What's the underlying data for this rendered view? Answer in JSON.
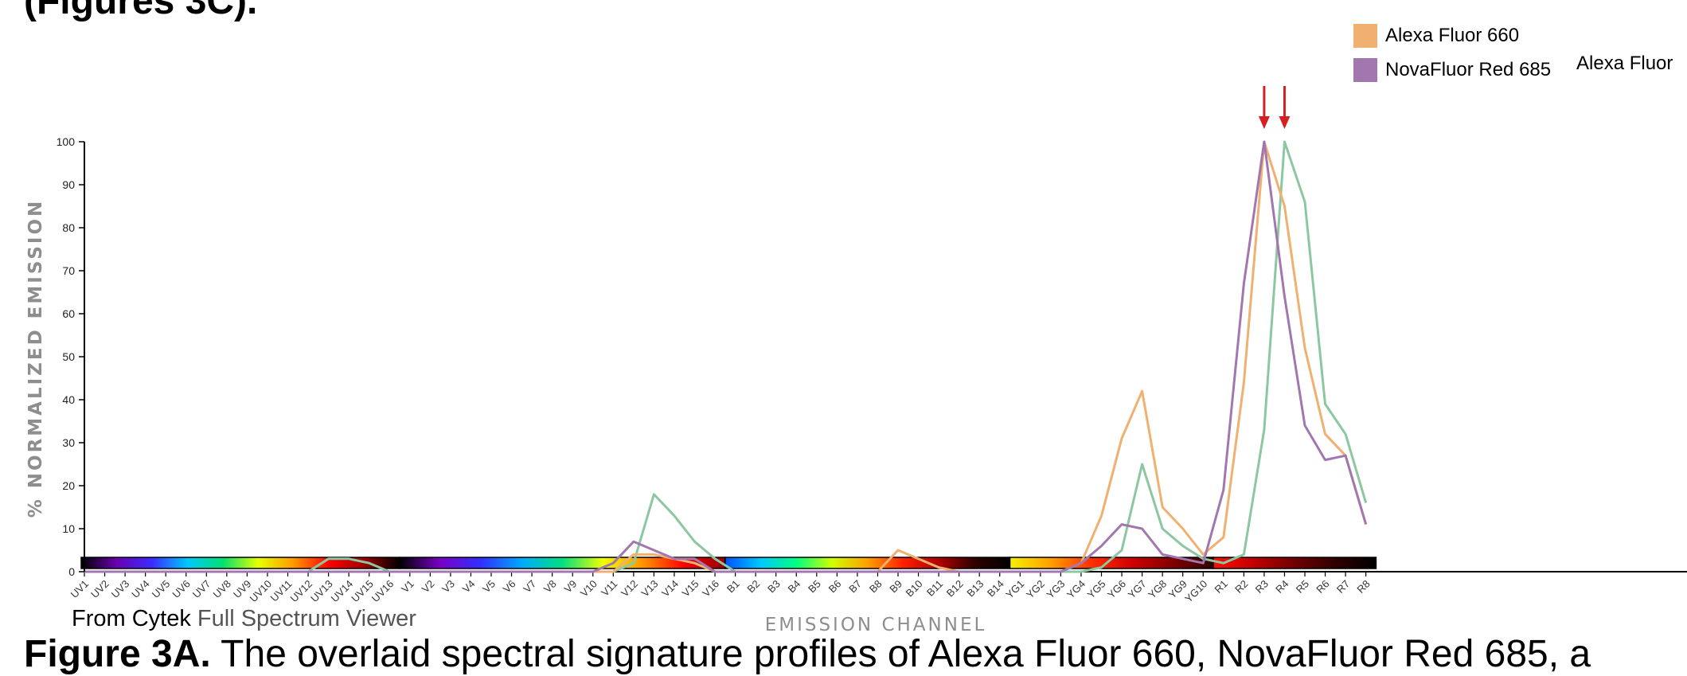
{
  "page": {
    "top_caption": "(Figures 3C).",
    "source_prefix": "From Cytek",
    "source_suffix": "Full Spectrum Viewer",
    "caption_label": "Figure 3A.",
    "caption_text": " The overlaid spectral signature profiles of Alexa Fluor 660, NovaFluor Red 685, a",
    "legend_extra": "Alexa Fluor"
  },
  "colors": {
    "orange": "#f0b070",
    "purple": "#a277b0",
    "green": "#8cc7a1",
    "axis": "#000000",
    "axis_label": "#8e8e8e",
    "arrow": "#d42020"
  },
  "chart_data": {
    "type": "line",
    "xlabel": "EMISSION CHANNEL",
    "ylabel": "% NORMALIZED EMISSION",
    "ylim": [
      0,
      100
    ],
    "yticks": [
      0,
      10,
      20,
      30,
      40,
      50,
      60,
      70,
      80,
      90,
      100
    ],
    "grid": false,
    "legend_position": "top-right",
    "categories": [
      "UV1",
      "UV2",
      "UV3",
      "UV4",
      "UV5",
      "UV6",
      "UV7",
      "UV8",
      "UV9",
      "UV10",
      "UV11",
      "UV12",
      "UV13",
      "UV14",
      "UV15",
      "UV16",
      "V1",
      "V2",
      "V3",
      "V4",
      "V5",
      "V6",
      "V7",
      "V8",
      "V9",
      "V10",
      "V11",
      "V12",
      "V13",
      "V14",
      "V15",
      "V16",
      "B1",
      "B2",
      "B3",
      "B4",
      "B5",
      "B6",
      "B7",
      "B8",
      "B9",
      "B10",
      "B11",
      "B12",
      "B13",
      "B14",
      "YG1",
      "YG2",
      "YG3",
      "YG4",
      "YG5",
      "YG6",
      "YG7",
      "YG8",
      "YG9",
      "YG10",
      "R1",
      "R2",
      "R3",
      "R4",
      "R5",
      "R6",
      "R7",
      "R8"
    ],
    "laser_groups": [
      {
        "name": "UV",
        "count": 16
      },
      {
        "name": "V",
        "count": 16
      },
      {
        "name": "B",
        "count": 14
      },
      {
        "name": "YG",
        "count": 10
      },
      {
        "name": "R",
        "count": 8
      }
    ],
    "series": [
      {
        "name": "Alexa Fluor 660",
        "color": "#f0b070",
        "values": [
          0,
          0,
          0,
          0,
          0,
          0,
          0,
          0,
          0,
          0,
          0,
          0,
          0,
          0,
          0,
          0,
          0,
          0,
          0,
          0,
          0,
          0,
          0,
          0,
          0,
          0,
          0,
          4,
          4,
          3,
          2,
          0,
          0,
          0,
          0,
          0,
          0,
          0,
          0,
          0,
          5,
          3,
          1,
          0,
          0,
          0,
          0,
          0,
          0,
          2,
          13,
          31,
          42,
          15,
          10,
          4,
          8,
          44,
          100,
          85,
          52,
          32,
          27,
          11
        ]
      },
      {
        "name": "NovaFluor Red 685",
        "color": "#a277b0",
        "values": [
          0,
          0,
          0,
          0,
          0,
          0,
          0,
          0,
          0,
          0,
          0,
          0,
          0,
          0,
          0,
          0,
          0,
          0,
          0,
          0,
          0,
          0,
          0,
          0,
          0,
          0,
          2,
          7,
          5,
          3,
          3,
          0,
          0,
          0,
          0,
          0,
          0,
          0,
          0,
          0,
          0,
          0,
          0,
          0,
          0,
          0,
          0,
          0,
          0,
          2,
          6,
          11,
          10,
          4,
          3,
          2,
          19,
          67,
          100,
          64,
          34,
          26,
          27,
          11
        ]
      },
      {
        "name": "Alexa Fluor",
        "color": "#8cc7a1",
        "values": [
          0,
          0,
          0,
          0,
          0,
          0,
          0,
          0,
          0,
          0,
          0,
          0,
          3,
          3,
          2,
          0,
          0,
          0,
          0,
          0,
          0,
          0,
          0,
          0,
          0,
          0,
          0,
          2,
          18,
          13,
          7,
          3,
          0,
          0,
          0,
          0,
          0,
          0,
          0,
          0,
          0,
          0,
          0,
          0,
          0,
          0,
          0,
          0,
          0,
          0,
          1,
          5,
          25,
          10,
          6,
          3,
          2,
          4,
          33,
          100,
          86,
          39,
          32,
          16
        ]
      }
    ],
    "arrows_at": [
      "R3",
      "R4"
    ]
  }
}
